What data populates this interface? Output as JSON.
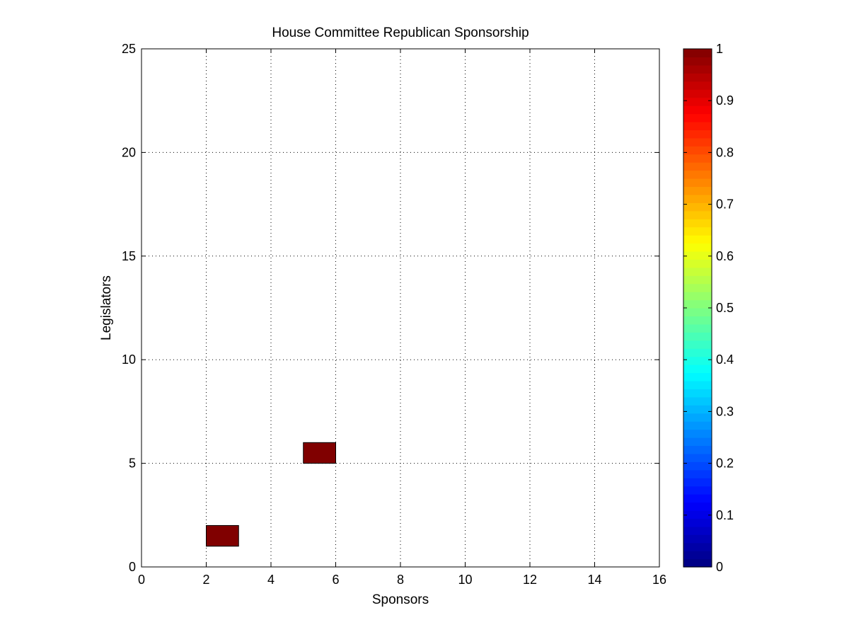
{
  "chart_data": {
    "type": "heatmap",
    "title": "House Committee Republican Sponsorship",
    "xlabel": "Sponsors",
    "ylabel": "Legislators",
    "xlim": [
      0,
      16
    ],
    "ylim": [
      0,
      25
    ],
    "xticks": [
      0,
      2,
      4,
      6,
      8,
      10,
      12,
      14,
      16
    ],
    "yticks": [
      0,
      5,
      10,
      15,
      20,
      25
    ],
    "grid": true,
    "grid_style": "dotted",
    "background_value_color": "#ffffff",
    "cells": [
      {
        "x0": 2,
        "x1": 3,
        "y0": 1,
        "y1": 2,
        "value": 1
      },
      {
        "x0": 5,
        "x1": 6,
        "y0": 5,
        "y1": 6,
        "value": 1
      }
    ],
    "colorbar": {
      "colormap": "jet",
      "range": [
        0,
        1
      ],
      "ticks": [
        0,
        0.1,
        0.2,
        0.3,
        0.4,
        0.5,
        0.6,
        0.7,
        0.8,
        0.9,
        1
      ],
      "tick_labels": [
        "0",
        "0.1",
        "0.2",
        "0.3",
        "0.4",
        "0.5",
        "0.6",
        "0.7",
        "0.8",
        "0.9",
        "1"
      ],
      "levels": 64
    }
  }
}
